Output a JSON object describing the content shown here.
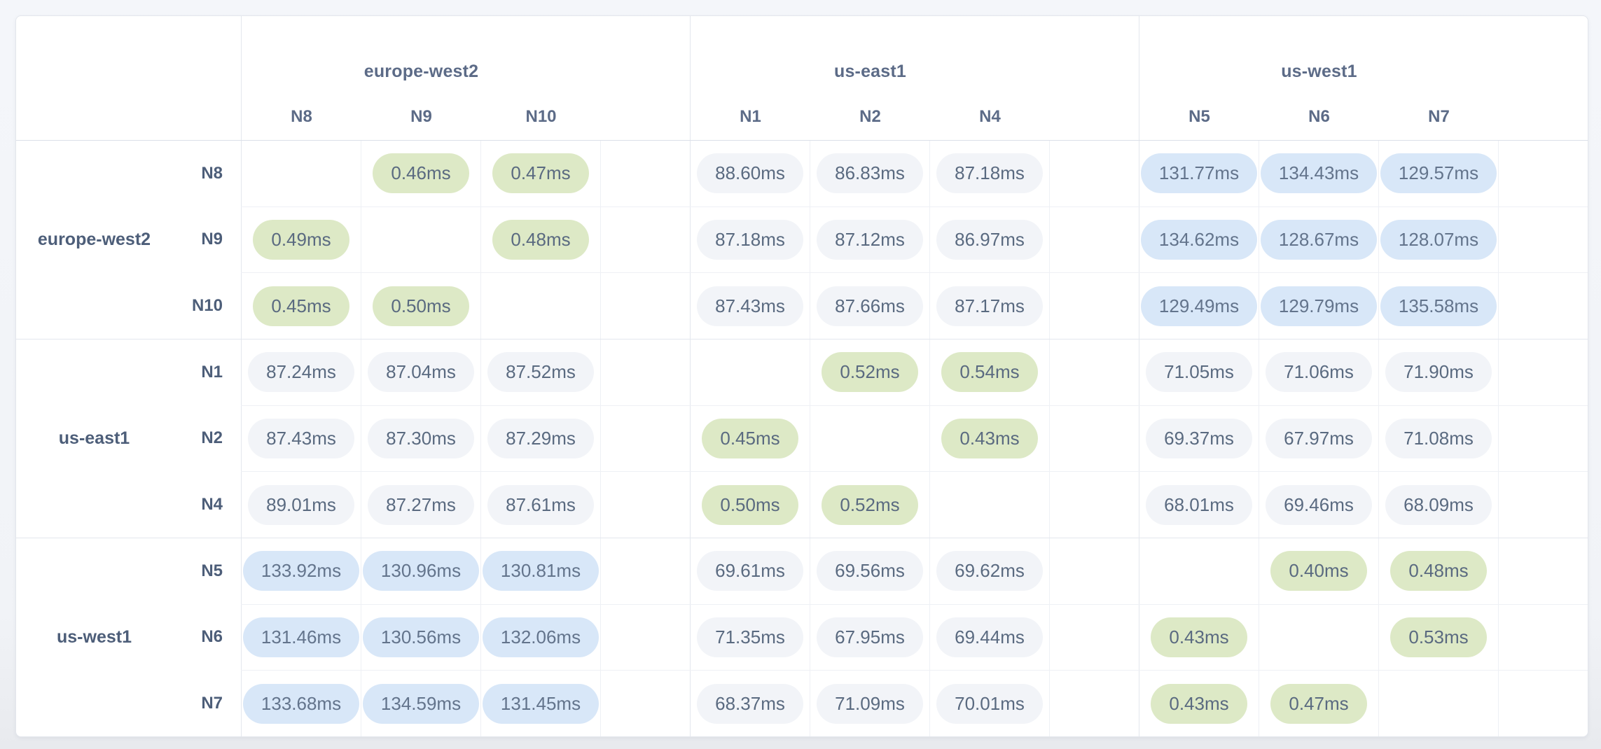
{
  "colors": {
    "intra_region_pill": "#dde9c6",
    "mid_latency_pill": "#f2f4f8",
    "high_latency_pill": "#d8e7f8",
    "pill_text": "#5a6a80",
    "header_text": "#5c6b87",
    "row_label_text": "#4d5e79",
    "card_background": "#ffffff",
    "page_background": "#f1f3f7"
  },
  "matrix": {
    "unit": "ms",
    "column_groups": [
      {
        "region": "europe-west2",
        "nodes": [
          "N8",
          "N9",
          "N10"
        ]
      },
      {
        "region": "us-east1",
        "nodes": [
          "N1",
          "N2",
          "N4"
        ]
      },
      {
        "region": "us-west1",
        "nodes": [
          "N5",
          "N6",
          "N7"
        ]
      }
    ],
    "row_groups": [
      {
        "region": "europe-west2",
        "rows": [
          {
            "node": "N8",
            "cells": [
              "",
              "0.46ms",
              "0.47ms",
              "88.60ms",
              "86.83ms",
              "87.18ms",
              "131.77ms",
              "134.43ms",
              "129.57ms"
            ]
          },
          {
            "node": "N9",
            "cells": [
              "0.49ms",
              "",
              "0.48ms",
              "87.18ms",
              "87.12ms",
              "86.97ms",
              "134.62ms",
              "128.67ms",
              "128.07ms"
            ]
          },
          {
            "node": "N10",
            "cells": [
              "0.45ms",
              "0.50ms",
              "",
              "87.43ms",
              "87.66ms",
              "87.17ms",
              "129.49ms",
              "129.79ms",
              "135.58ms"
            ]
          }
        ]
      },
      {
        "region": "us-east1",
        "rows": [
          {
            "node": "N1",
            "cells": [
              "87.24ms",
              "87.04ms",
              "87.52ms",
              "",
              "0.52ms",
              "0.54ms",
              "71.05ms",
              "71.06ms",
              "71.90ms"
            ]
          },
          {
            "node": "N2",
            "cells": [
              "87.43ms",
              "87.30ms",
              "87.29ms",
              "0.45ms",
              "",
              "0.43ms",
              "69.37ms",
              "67.97ms",
              "71.08ms"
            ]
          },
          {
            "node": "N4",
            "cells": [
              "89.01ms",
              "87.27ms",
              "87.61ms",
              "0.50ms",
              "0.52ms",
              "",
              "68.01ms",
              "69.46ms",
              "68.09ms"
            ]
          }
        ]
      },
      {
        "region": "us-west1",
        "rows": [
          {
            "node": "N5",
            "cells": [
              "133.92ms",
              "130.96ms",
              "130.81ms",
              "69.61ms",
              "69.56ms",
              "69.62ms",
              "",
              "0.40ms",
              "0.48ms"
            ]
          },
          {
            "node": "N6",
            "cells": [
              "131.46ms",
              "130.56ms",
              "132.06ms",
              "71.35ms",
              "67.95ms",
              "69.44ms",
              "0.43ms",
              "",
              "0.53ms"
            ]
          },
          {
            "node": "N7",
            "cells": [
              "133.68ms",
              "134.59ms",
              "131.45ms",
              "68.37ms",
              "71.09ms",
              "70.01ms",
              "0.43ms",
              "0.47ms",
              ""
            ]
          }
        ]
      }
    ]
  }
}
